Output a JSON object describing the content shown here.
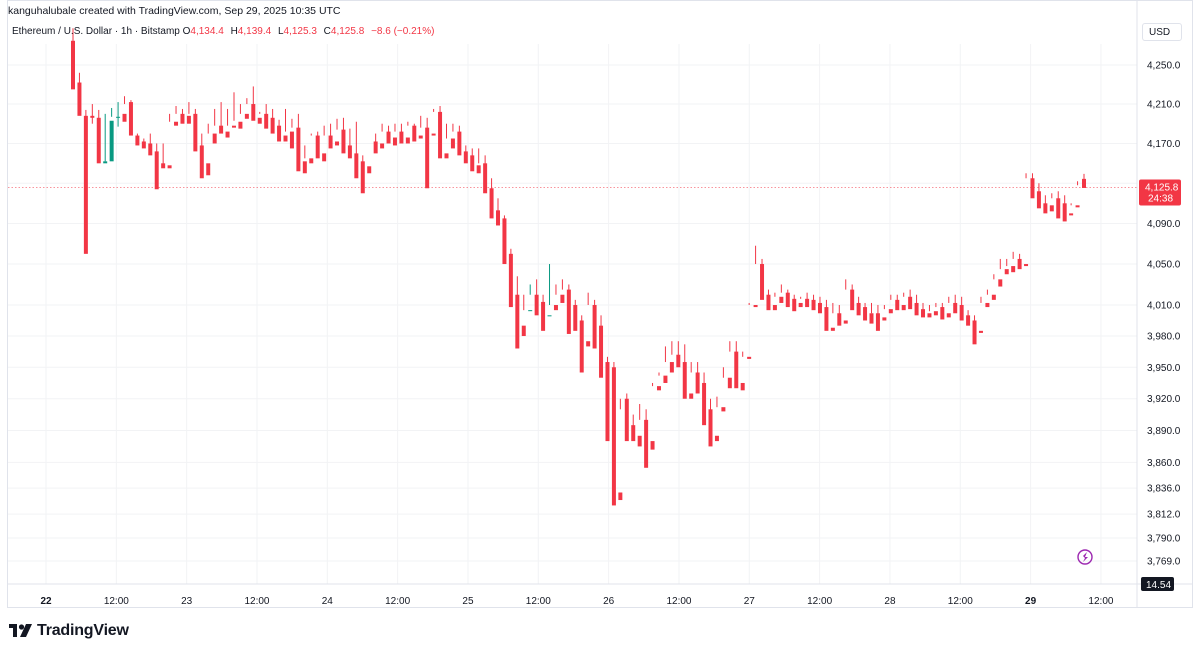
{
  "header": {
    "credit": "kanguhalubale created with TradingView.com, Sep 29, 2025 10:35 UTC"
  },
  "legend": {
    "symbol": "Ethereum / U.S. Dollar · 1h · Bitstamp",
    "open_label": "O",
    "open": "4,134.4",
    "high_label": "H",
    "high": "4,139.4",
    "low_label": "L",
    "low": "4,125.3",
    "close_label": "C",
    "close": "4,125.8",
    "change": "−8.6 (−0.21%)"
  },
  "currency_label": "USD",
  "price_tag": {
    "price": "4,125.8",
    "countdown": "24:38",
    "color": "#f23645"
  },
  "indicator_tag": {
    "value": "14.54",
    "color": "#131722"
  },
  "brand": {
    "name": "TradingView"
  },
  "colors": {
    "up": "#089981",
    "down": "#f23645",
    "grid": "#f2f3f5",
    "axis_text": "#131722",
    "border": "#e0e3eb",
    "accent_icon": "#9c27b0"
  },
  "chart_data": {
    "type": "candlestick",
    "title": "Ethereum / U.S. Dollar · 1h · Bitstamp",
    "interval": "1h",
    "scale": "log",
    "yticks": [
      4250,
      4210,
      4170,
      4130,
      4090,
      4050,
      4010,
      3980,
      3950,
      3920,
      3890,
      3860,
      3836,
      3812,
      3790,
      3769
    ],
    "ytick_labels": [
      "4,250.0",
      "4,210.0",
      "4,170.0",
      "4,130.0",
      "4,090.0",
      "4,050.0",
      "4,010.0",
      "3,980.0",
      "3,950.0",
      "3,920.0",
      "3,890.0",
      "3,860.0",
      "3,836.0",
      "3,812.0",
      "3,790.0",
      "3,769.0"
    ],
    "xticks": [
      "22",
      "12:00",
      "23",
      "12:00",
      "24",
      "12:00",
      "25",
      "12:00",
      "26",
      "12:00",
      "27",
      "12:00",
      "28",
      "12:00",
      "29",
      "12:00"
    ],
    "bold_xticks": [
      "22",
      "29"
    ],
    "last_price": 4125.8,
    "grid": true,
    "candles": [
      [
        4275,
        4288,
        4232,
        4225
      ],
      [
        4232,
        4242,
        4205,
        4198
      ],
      [
        4198,
        4204,
        4196,
        4060
      ],
      [
        4198,
        4210,
        4190,
        4196
      ],
      [
        4196,
        4204,
        4170,
        4150
      ],
      [
        4150,
        4200,
        4152,
        4152
      ],
      [
        4152,
        4206,
        4197,
        4193
      ],
      [
        4197,
        4212,
        4187,
        4197
      ],
      [
        4200,
        4218,
        4210,
        4192
      ],
      [
        4212,
        4214,
        4180,
        4178
      ],
      [
        4178,
        4180,
        4172,
        4168
      ],
      [
        4172,
        4175,
        4170,
        4165
      ],
      [
        4170,
        4180,
        4162,
        4158
      ],
      [
        4162,
        4170,
        4150,
        4124
      ],
      [
        4150,
        4170,
        4148,
        4145
      ],
      [
        4148,
        4200,
        4192,
        4145
      ],
      [
        4192,
        4208,
        4200,
        4188
      ],
      [
        4200,
        4205,
        4198,
        4190
      ],
      [
        4198,
        4212,
        4200,
        4190
      ],
      [
        4200,
        4205,
        4168,
        4162
      ],
      [
        4168,
        4180,
        4150,
        4135
      ],
      [
        4150,
        4190,
        4180,
        4138
      ],
      [
        4180,
        4205,
        4188,
        4170
      ],
      [
        4188,
        4212,
        4185,
        4180
      ],
      [
        4182,
        4205,
        4188,
        4176
      ],
      [
        4188,
        4222,
        4193,
        4186
      ],
      [
        4192,
        4210,
        4200,
        4185
      ],
      [
        4200,
        4216,
        4210,
        4195
      ],
      [
        4210,
        4228,
        4196,
        4193
      ],
      [
        4196,
        4202,
        4200,
        4190
      ],
      [
        4200,
        4210,
        4196,
        4185
      ],
      [
        4196,
        4205,
        4188,
        4180
      ],
      [
        4188,
        4194,
        4178,
        4172
      ],
      [
        4178,
        4205,
        4182,
        4172
      ],
      [
        4182,
        4195,
        4186,
        4165
      ],
      [
        4186,
        4200,
        4152,
        4142
      ],
      [
        4152,
        4168,
        4155,
        4140
      ],
      [
        4155,
        4180,
        4178,
        4150
      ],
      [
        4178,
        4182,
        4160,
        4155
      ],
      [
        4160,
        4188,
        4178,
        4152
      ],
      [
        4178,
        4190,
        4172,
        4165
      ],
      [
        4172,
        4195,
        4184,
        4168
      ],
      [
        4184,
        4196,
        4168,
        4160
      ],
      [
        4168,
        4185,
        4160,
        4155
      ],
      [
        4160,
        4192,
        4152,
        4135
      ],
      [
        4152,
        4158,
        4147,
        4120
      ],
      [
        4147,
        4172,
        4172,
        4140
      ],
      [
        4172,
        4180,
        4170,
        4160
      ],
      [
        4170,
        4190,
        4182,
        4165
      ],
      [
        4182,
        4188,
        4176,
        4170
      ],
      [
        4176,
        4190,
        4182,
        4168
      ],
      [
        4182,
        4190,
        4176,
        4170
      ],
      [
        4176,
        4192,
        4188,
        4170
      ],
      [
        4188,
        4190,
        4178,
        4172
      ],
      [
        4178,
        4198,
        4186,
        4175
      ],
      [
        4186,
        4196,
        4180,
        4125
      ],
      [
        4180,
        4205,
        4202,
        4178
      ],
      [
        4202,
        4208,
        4160,
        4155
      ],
      [
        4160,
        4190,
        4175,
        4155
      ],
      [
        4175,
        4190,
        4182,
        4165
      ],
      [
        4182,
        4188,
        4162,
        4158
      ],
      [
        4162,
        4168,
        4158,
        4150
      ],
      [
        4158,
        4165,
        4148,
        4142
      ],
      [
        4148,
        4165,
        4150,
        4140
      ],
      [
        4150,
        4158,
        4125,
        4120
      ],
      [
        4125,
        4135,
        4103,
        4095
      ],
      [
        4103,
        4115,
        4095,
        4088
      ],
      [
        4095,
        4098,
        4060,
        4050
      ],
      [
        4060,
        4065,
        4020,
        4008
      ],
      [
        4020,
        4038,
        3990,
        3968
      ],
      [
        3990,
        4020,
        4005,
        3980
      ],
      [
        4005,
        4030,
        4020,
        4005
      ],
      [
        4020,
        4035,
        4013,
        4000
      ],
      [
        4013,
        4020,
        4000,
        3985
      ],
      [
        4000,
        4050,
        4010,
        4000
      ],
      [
        4010,
        4030,
        4020,
        4005
      ],
      [
        4020,
        4035,
        4025,
        4012
      ],
      [
        4025,
        4030,
        4010,
        3982
      ],
      [
        4010,
        4015,
        3995,
        3985
      ],
      [
        3995,
        4000,
        3975,
        3945
      ],
      [
        3975,
        4022,
        4010,
        3970
      ],
      [
        4010,
        4015,
        3990,
        3968
      ],
      [
        3990,
        4000,
        3955,
        3940
      ],
      [
        3955,
        3960,
        3950,
        3880
      ],
      [
        3950,
        3955,
        3832,
        3820
      ],
      [
        3832,
        3910,
        3920,
        3825
      ],
      [
        3920,
        3925,
        3895,
        3880
      ],
      [
        3895,
        3905,
        3885,
        3880
      ],
      [
        3885,
        3915,
        3900,
        3875
      ],
      [
        3900,
        3910,
        3880,
        3855
      ],
      [
        3880,
        3935,
        3932,
        3872
      ],
      [
        3932,
        3945,
        3942,
        3928
      ],
      [
        3942,
        3970,
        3955,
        3935
      ],
      [
        3955,
        3975,
        3962,
        3945
      ],
      [
        3962,
        3975,
        3955,
        3950
      ],
      [
        3955,
        3972,
        3925,
        3920
      ],
      [
        3925,
        3955,
        3945,
        3920
      ],
      [
        3945,
        3955,
        3935,
        3925
      ],
      [
        3935,
        3945,
        3910,
        3895
      ],
      [
        3910,
        3920,
        3885,
        3875
      ],
      [
        3885,
        3922,
        3912,
        3880
      ],
      [
        3912,
        3950,
        3940,
        3908
      ],
      [
        3940,
        3975,
        3965,
        3930
      ],
      [
        3965,
        3975,
        3935,
        3930
      ],
      [
        3935,
        3965,
        3960,
        3928
      ],
      [
        3960,
        4012,
        4010,
        3958
      ],
      [
        4010,
        4068,
        4050,
        4008
      ],
      [
        4050,
        4055,
        4020,
        4015
      ],
      [
        4020,
        4025,
        4010,
        4005
      ],
      [
        4010,
        4022,
        4018,
        4005
      ],
      [
        4018,
        4030,
        4022,
        4012
      ],
      [
        4022,
        4025,
        4016,
        4008
      ],
      [
        4016,
        4020,
        4012,
        4004
      ],
      [
        4012,
        4018,
        4016,
        4008
      ],
      [
        4016,
        4022,
        4015,
        4008
      ],
      [
        4015,
        4020,
        4012,
        4005
      ],
      [
        4012,
        4018,
        4008,
        4002
      ],
      [
        4008,
        4015,
        3988,
        3985
      ],
      [
        3988,
        4012,
        4002,
        3985
      ],
      [
        4002,
        4010,
        3995,
        3990
      ],
      [
        3995,
        4035,
        4025,
        3992
      ],
      [
        4025,
        4030,
        4012,
        4005
      ],
      [
        4012,
        4018,
        4008,
        4000
      ],
      [
        4008,
        4012,
        4002,
        3995
      ],
      [
        4002,
        4012,
        4002,
        3992
      ],
      [
        4002,
        4010,
        3998,
        3985
      ],
      [
        3998,
        4010,
        4006,
        3995
      ],
      [
        4006,
        4020,
        4015,
        4002
      ],
      [
        4015,
        4020,
        4010,
        4005
      ],
      [
        4010,
        4022,
        4018,
        4005
      ],
      [
        4018,
        4025,
        4012,
        4006
      ],
      [
        4012,
        4020,
        4006,
        4000
      ],
      [
        4006,
        4012,
        4002,
        3998
      ],
      [
        4002,
        4010,
        4004,
        3998
      ],
      [
        4004,
        4012,
        4008,
        4000
      ],
      [
        4008,
        4012,
        4002,
        3996
      ],
      [
        4002,
        4018,
        4012,
        3998
      ],
      [
        4012,
        4020,
        4010,
        4002
      ],
      [
        4010,
        4018,
        4000,
        3995
      ],
      [
        4000,
        4005,
        3995,
        3990
      ],
      [
        3995,
        4000,
        3985,
        3972
      ],
      [
        3985,
        4018,
        4012,
        3983
      ],
      [
        4012,
        4025,
        4020,
        4008
      ],
      [
        4020,
        4040,
        4035,
        4015
      ],
      [
        4035,
        4055,
        4045,
        4028
      ],
      [
        4045,
        4055,
        4048,
        4040
      ],
      [
        4048,
        4062,
        4055,
        4042
      ],
      [
        4055,
        4060,
        4050,
        4045
      ],
      [
        4050,
        4140,
        4135,
        4048
      ],
      [
        4135,
        4140,
        4122,
        4115
      ],
      [
        4122,
        4130,
        4110,
        4105
      ],
      [
        4110,
        4118,
        4108,
        4100
      ],
      [
        4108,
        4120,
        4115,
        4102
      ],
      [
        4115,
        4122,
        4110,
        4095
      ],
      [
        4110,
        4118,
        4100,
        4092
      ],
      [
        4100,
        4110,
        4108,
        4098
      ],
      [
        4108,
        4132,
        4128,
        4106
      ],
      [
        4134.4,
        4139.4,
        4125.8,
        4125.3
      ]
    ]
  }
}
